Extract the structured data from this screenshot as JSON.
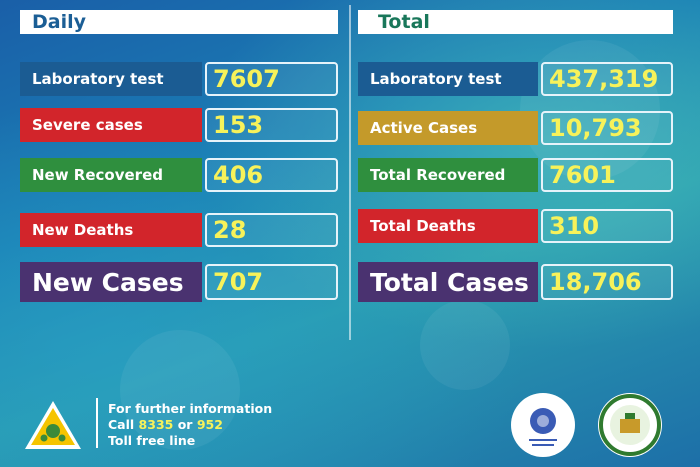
{
  "daily": {
    "header": "Daily",
    "rows": [
      {
        "label": "Laboratory test",
        "value": "7607"
      },
      {
        "label": "Severe cases",
        "value": "153"
      },
      {
        "label": "New Recovered",
        "value": "406"
      },
      {
        "label": "New Deaths",
        "value": "28"
      },
      {
        "label": "New Cases",
        "value": "707"
      }
    ]
  },
  "total": {
    "header": "Total",
    "rows": [
      {
        "label": "Laboratory test",
        "value": "437,319"
      },
      {
        "label": "Active Cases",
        "value": "10,793"
      },
      {
        "label": "Total Recovered",
        "value": "7601"
      },
      {
        "label": "Total Deaths",
        "value": "310"
      },
      {
        "label": "Total Cases",
        "value": "18,706"
      }
    ]
  },
  "footer": {
    "line1": "For further information",
    "call_prefix": "Call",
    "number1": "8335",
    "or_text": "or",
    "number2": "952",
    "line3": "Toll free line"
  },
  "colors": {
    "lab": "#1b5c93",
    "severe": "#d2252b",
    "recovered": "#2f8f3e",
    "deaths": "#d2252b",
    "cases": "#4a3270",
    "active": "#c49a2a",
    "value_text": "#f7f25a"
  },
  "icons": [
    "warning-virus-icon",
    "ministry-of-health-logo",
    "public-health-institute-logo"
  ]
}
